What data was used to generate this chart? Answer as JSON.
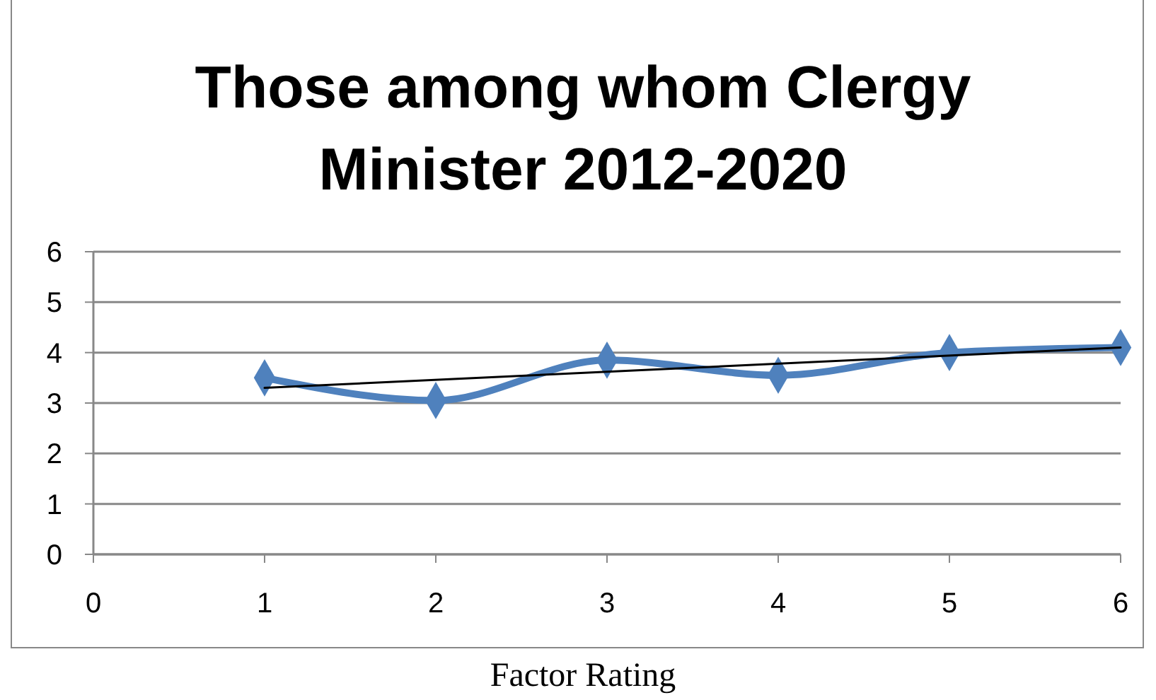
{
  "chart_data": {
    "type": "line",
    "title": [
      "Those among whom Clergy",
      "Minister 2012-2020"
    ],
    "xlabel": "Factor Rating",
    "x": [
      1,
      2,
      3,
      4,
      5,
      6
    ],
    "xlim": [
      0,
      6
    ],
    "xticks": [
      0,
      1,
      2,
      3,
      4,
      5,
      6
    ],
    "ylim": [
      0,
      6
    ],
    "yticks": [
      0,
      1,
      2,
      3,
      4,
      5,
      6
    ],
    "grid": "y",
    "series": [
      {
        "color": "#4f81bd",
        "values": [
          3.5,
          3.05,
          3.85,
          3.55,
          4.0,
          4.1
        ],
        "marker": "diamond"
      },
      {
        "type": "line",
        "color": "#000000",
        "x": [
          1,
          6
        ],
        "values": [
          3.3,
          4.1
        ],
        "marker": "none"
      }
    ]
  }
}
